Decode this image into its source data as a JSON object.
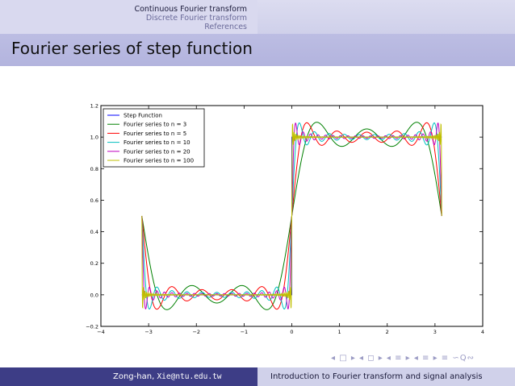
{
  "nav": {
    "sections": [
      "Continuous Fourier transform",
      "Discrete Fourier transform",
      "References"
    ]
  },
  "frame_title": "Fourier series of step function",
  "chart_data": {
    "type": "line",
    "title": "",
    "xlabel": "",
    "ylabel": "",
    "xlim": [
      -4,
      4
    ],
    "ylim": [
      -0.2,
      1.2
    ],
    "x_ticks": [
      -4,
      -3,
      -2,
      -1,
      0,
      1,
      2,
      3,
      4
    ],
    "x_tick_labels": [
      "−4",
      "−3",
      "−2",
      "−1",
      "0",
      "1",
      "2",
      "3",
      "4"
    ],
    "y_ticks": [
      -0.2,
      0.0,
      0.2,
      0.4,
      0.6,
      0.8,
      1.0,
      1.2
    ],
    "y_tick_labels": [
      "−0.2",
      "0.0",
      "0.2",
      "0.4",
      "0.6",
      "0.8",
      "1.0",
      "1.2"
    ],
    "x_range": [
      -3.1416,
      3.1416
    ],
    "step_levels": {
      "low": 0,
      "high": 1,
      "jump_at": 0
    },
    "fourier_formula": "0.5 + (2/pi) * sum_{k=1..n} sin((2k-1)x)/(2k-1)",
    "grid": false,
    "legend_position": "top-left",
    "series": [
      {
        "name": "Step Function",
        "kind": "step",
        "n": 0,
        "color": "#0000ff"
      },
      {
        "name": "Fourier series to n = 3",
        "kind": "fourier",
        "n": 3,
        "color": "#008000"
      },
      {
        "name": "Fourier series to n = 5",
        "kind": "fourier",
        "n": 5,
        "color": "#ff0000"
      },
      {
        "name": "Fourier series to n = 10",
        "kind": "fourier",
        "n": 10,
        "color": "#00bfbf"
      },
      {
        "name": "Fourier series to n = 20",
        "kind": "fourier",
        "n": 20,
        "color": "#bf00bf"
      },
      {
        "name": "Fourier series to n = 100",
        "kind": "fourier",
        "n": 100,
        "color": "#bfbf00"
      }
    ]
  },
  "nav_symbols": "◂ □ ▸ ◂ ◻ ▸ ◂ ≡ ▸ ◂ ≡ ▸ ≡ ∽Q∾",
  "footer": {
    "author_prefix": "Zong-han, ",
    "email": "Xie@ntu.edu.tw",
    "title": "Introduction to Fourier transform and signal analysis"
  }
}
